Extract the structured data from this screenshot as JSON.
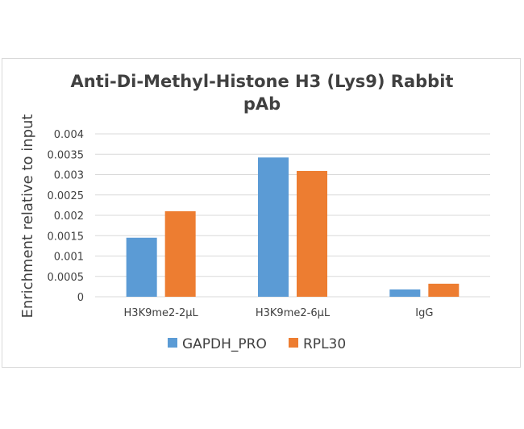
{
  "chart_data": {
    "type": "bar",
    "title_lines": [
      "Anti-Di-Methyl-Histone H3 (Lys9) Rabbit",
      "pAb"
    ],
    "ylabel": "Enrichment relative to input",
    "xlabel": "",
    "categories": [
      "H3K9me2-2µL",
      "H3K9me2-6µL",
      "IgG"
    ],
    "series": [
      {
        "name": "GAPDH_PRO",
        "color": "#5b9bd5",
        "values": [
          0.00145,
          0.00342,
          0.00018
        ]
      },
      {
        "name": "RPL30",
        "color": "#ed7d31",
        "values": [
          0.0021,
          0.00309,
          0.00032
        ]
      }
    ],
    "ylim": [
      0,
      0.004
    ],
    "yticks": [
      "0",
      "0.0005",
      "0.001",
      "0.0015",
      "0.002",
      "0.0025",
      "0.003",
      "0.0035",
      "0.004"
    ],
    "grid": true,
    "legend_position": "bottom"
  }
}
